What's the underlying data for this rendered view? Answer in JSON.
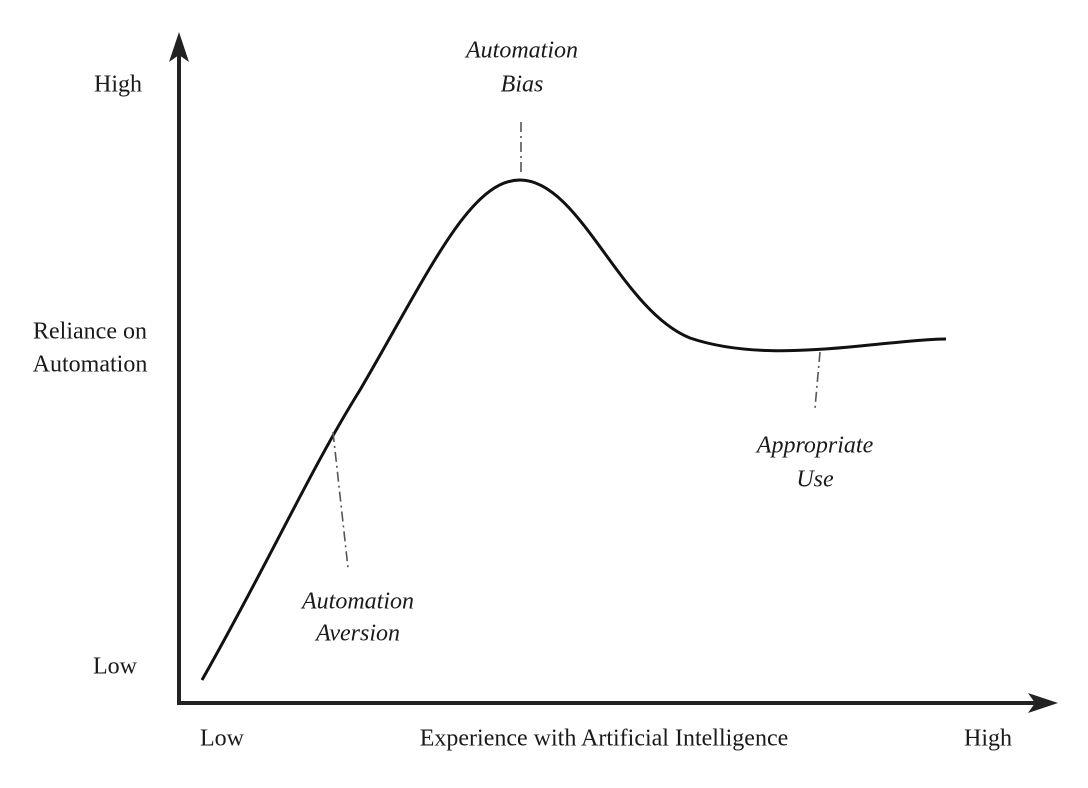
{
  "y_axis": {
    "high": "High",
    "label_lines": [
      "Reliance on",
      "Automation"
    ],
    "low": "Low"
  },
  "x_axis": {
    "low": "Low",
    "label": "Experience with Artificial Intelligence",
    "high": "High"
  },
  "annotations": [
    {
      "lines": [
        "Automation",
        "Bias"
      ]
    },
    {
      "lines": [
        "Automation",
        "Aversion"
      ]
    },
    {
      "lines": [
        "Appropriate",
        "Use"
      ]
    }
  ]
}
